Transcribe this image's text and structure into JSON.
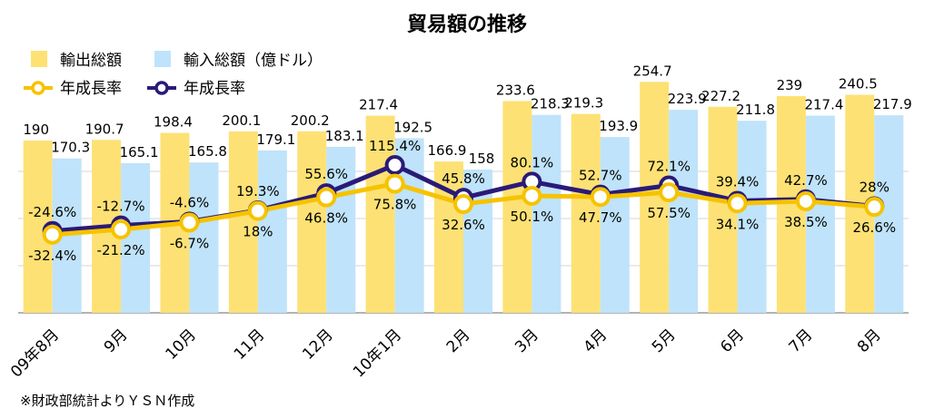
{
  "chart_data": {
    "type": "bar",
    "title": "貿易額の推移",
    "categories": [
      "09年8月",
      "9月",
      "10月",
      "11月",
      "12月",
      "10年1月",
      "2月",
      "3月",
      "4月",
      "5月",
      "6月",
      "7月",
      "8月"
    ],
    "series": [
      {
        "name": "輸出総額",
        "kind": "bar",
        "color": "#fde174",
        "values": [
          190,
          190.7,
          198.4,
          200.1,
          200.2,
          217.4,
          166.9,
          233.6,
          219.3,
          254.7,
          227.2,
          239,
          240.5
        ]
      },
      {
        "name": "輸入総額（億ドル）",
        "kind": "bar",
        "color": "#bfe3fa",
        "values": [
          170.3,
          165.1,
          165.8,
          179.1,
          183.1,
          192.5,
          158,
          218.3,
          193.9,
          223.9,
          211.8,
          217.4,
          217.9
        ]
      },
      {
        "name": "年成長率",
        "kind": "line",
        "color": "#f6c300",
        "values": [
          -32.4,
          -21.2,
          -6.7,
          18,
          46.8,
          75.8,
          32.6,
          50.1,
          47.7,
          57.5,
          34.1,
          38.5,
          26.6
        ],
        "labels": [
          "-32.4%",
          "-21.2%",
          "-6.7%",
          "18%",
          "46.8%",
          "75.8%",
          "32.6%",
          "50.1%",
          "47.7%",
          "57.5%",
          "34.1%",
          "38.5%",
          "26.6%"
        ]
      },
      {
        "name": "年成長率",
        "kind": "line",
        "color": "#2a1a78",
        "values": [
          -24.6,
          -12.7,
          -4.6,
          19.3,
          55.6,
          115.4,
          45.8,
          80.1,
          52.7,
          72.1,
          39.4,
          42.7,
          28
        ],
        "labels": [
          "-24.6%",
          "-12.7%",
          "-4.6%",
          "19.3%",
          "55.6%",
          "115.4%",
          "45.8%",
          "80.1%",
          "52.7%",
          "72.1%",
          "39.4%",
          "42.7%",
          "28%"
        ]
      }
    ],
    "grid": true,
    "legend": "top-left",
    "footnote": "※財政部統計よりＹＳＮ作成"
  }
}
